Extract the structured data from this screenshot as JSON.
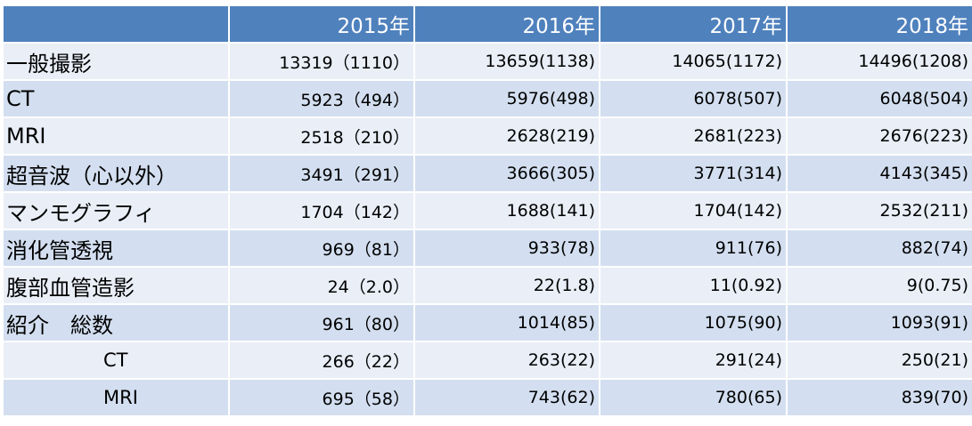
{
  "table": {
    "headers": [
      "",
      "2015年",
      "2016年",
      "2017年",
      "2018年"
    ],
    "rows": [
      {
        "label": "一般撮影",
        "values": [
          "13319（1110）",
          "13659(1138)",
          "14065(1172)",
          "14496(1208)"
        ]
      },
      {
        "label": "CT",
        "values": [
          "5923（494）",
          "5976(498)",
          "6078(507)",
          "6048(504)"
        ]
      },
      {
        "label": "MRI",
        "values": [
          "2518（210）",
          "2628(219)",
          "2681(223)",
          "2676(223)"
        ]
      },
      {
        "label": "超音波（心以外）",
        "values": [
          "3491（291）",
          "3666(305)",
          "3771(314)",
          "4143(345)"
        ]
      },
      {
        "label": "マンモグラフィ",
        "values": [
          "1704（142）",
          "1688(141)",
          "1704(142)",
          "2532(211)"
        ]
      },
      {
        "label": "消化管透視",
        "values": [
          "969（81）",
          "933(78)",
          "911(76)",
          "882(74)"
        ]
      },
      {
        "label": "腹部血管造影",
        "values": [
          "24（2.0）",
          "22(1.8)",
          "11(0.92)",
          "9(0.75)"
        ]
      },
      {
        "label": "紹介　総数",
        "values": [
          "961（80）",
          "1014(85)",
          "1075(90)",
          "1093(91)"
        ]
      },
      {
        "label": "CT",
        "values": [
          "266（22）",
          "263(22)",
          "291(24)",
          "250(21)"
        ]
      },
      {
        "label": "MRI",
        "values": [
          "695（58）",
          "743(62)",
          "780(65)",
          "839(70)"
        ]
      }
    ]
  },
  "colors": {
    "header_bg": "#4f81bd",
    "row_light": "#e9eef7",
    "row_dark": "#d3dff0"
  }
}
